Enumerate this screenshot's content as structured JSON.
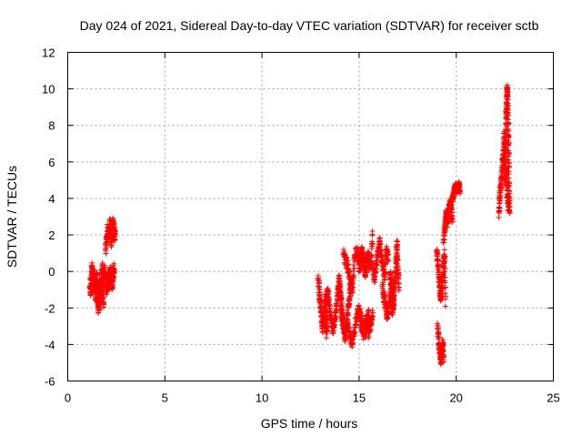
{
  "chart_data": {
    "type": "scatter",
    "title": "Day 024 of 2021, Sidereal Day-to-day VTEC variation (SDTVAR) for receiver sctb",
    "xlabel": "GPS time / hours",
    "ylabel": "SDTVAR / TECUs",
    "xlim": [
      0,
      25
    ],
    "ylim": [
      -6,
      12
    ],
    "xticks": [
      0,
      5,
      10,
      15,
      20,
      25
    ],
    "yticks": [
      -6,
      -4,
      -2,
      0,
      2,
      4,
      6,
      8,
      10,
      12
    ],
    "grid": true,
    "marker": "+",
    "color": "#ff0000",
    "series": [
      {
        "name": "sctb",
        "segments": [
          {
            "x0": 1.15,
            "x1": 1.5,
            "y": [
              -0.5,
              -1.2,
              -0.3,
              0.2,
              -1.0,
              -0.6,
              0.0,
              -1.4,
              -0.8,
              -0.2
            ],
            "noise": 0.35
          },
          {
            "x0": 1.5,
            "x1": 1.85,
            "y": [
              -0.8,
              -1.5,
              -2.0,
              -1.2,
              -0.4,
              -1.7,
              -0.9,
              0.3,
              -1.1,
              -1.8
            ],
            "noise": 0.4
          },
          {
            "x0": 1.85,
            "x1": 2.4,
            "y": [
              -0.3,
              0.2,
              -0.8,
              -1.2,
              0.0,
              -0.5,
              0.1,
              -1.0,
              -0.2,
              0.3
            ],
            "noise": 0.35
          },
          {
            "x0": 1.95,
            "x1": 2.45,
            "y": [
              1.2,
              1.8,
              2.3,
              2.0,
              2.6,
              1.5,
              2.4,
              2.8,
              2.1,
              1.9
            ],
            "noise": 0.3
          },
          {
            "x0": 12.9,
            "x1": 13.4,
            "y": [
              -0.5,
              -1.2,
              -1.8,
              -2.5,
              -3.0,
              -2.2,
              -1.6,
              -2.8,
              -3.4,
              -1.0
            ],
            "noise": 0.4
          },
          {
            "x0": 13.3,
            "x1": 14.3,
            "y": [
              -1.5,
              -1.2,
              -2.0,
              -2.8,
              -3.2,
              -2.5,
              -1.8,
              -1.0,
              -0.8,
              -2.2,
              -3.0,
              -3.5
            ],
            "noise": 0.35
          },
          {
            "x0": 13.9,
            "x1": 14.6,
            "y": [
              -1.0,
              -0.5,
              -1.5,
              -2.5,
              -3.0,
              -3.5,
              -2.8,
              -2.0,
              -1.2,
              -0.8
            ],
            "noise": 0.35
          },
          {
            "x0": 14.2,
            "x1": 15.2,
            "y": [
              1.0,
              0.6,
              0.2,
              -0.4,
              -1.0,
              0.5,
              1.2,
              0.8,
              0.3,
              0.9
            ],
            "noise": 0.35
          },
          {
            "x0": 14.4,
            "x1": 15.5,
            "y": [
              -2.8,
              -3.5,
              -4.0,
              -3.2,
              -2.5,
              -2.0,
              -2.8,
              -3.6,
              -3.0,
              -2.2
            ],
            "noise": 0.3
          },
          {
            "x0": 15.0,
            "x1": 15.7,
            "y": [
              0.2,
              0.8,
              1.2,
              0.5,
              -0.3,
              0.6,
              1.0,
              0.2,
              0.7,
              2.0
            ],
            "noise": 0.3
          },
          {
            "x0": 15.0,
            "x1": 15.7,
            "y": [
              -2.2,
              -2.8,
              -3.3,
              -3.0,
              -2.5,
              -3.4,
              -2.9,
              -2.4
            ],
            "noise": 0.3
          },
          {
            "x0": 15.7,
            "x1": 16.5,
            "y": [
              0.2,
              -0.5,
              0.4,
              1.0,
              1.6,
              0.8,
              0.2,
              -0.3,
              1.2,
              0.6
            ],
            "noise": 0.3
          },
          {
            "x0": 16.2,
            "x1": 16.8,
            "y": [
              -0.8,
              -1.5,
              -2.0,
              -2.4,
              -1.8,
              -1.2,
              -2.2,
              -1.6
            ],
            "noise": 0.3
          },
          {
            "x0": 16.6,
            "x1": 17.05,
            "y": [
              0.0,
              -0.5,
              -1.0,
              -1.6,
              -1.2,
              -0.6,
              0.5,
              1.5,
              0.2,
              -0.8
            ],
            "noise": 0.3
          },
          {
            "x0": 19.0,
            "x1": 19.45,
            "y": [
              1.2,
              0.6,
              -0.2,
              -0.8,
              -1.5,
              -1.0,
              -0.4,
              0.4,
              1.0,
              -1.8
            ],
            "noise": 0.3
          },
          {
            "x0": 19.05,
            "x1": 19.35,
            "y": [
              -3.0,
              -3.8,
              -4.2,
              -4.6,
              -5.0,
              -4.4,
              -3.9,
              -4.8
            ],
            "noise": 0.25
          },
          {
            "x0": 19.35,
            "x1": 19.8,
            "y": [
              1.5,
              2.2,
              2.8,
              3.2,
              2.6,
              3.0,
              3.6,
              3.9,
              3.3,
              2.9
            ],
            "noise": 0.25
          },
          {
            "x0": 19.8,
            "x1": 20.2,
            "y": [
              3.9,
              4.2,
              4.5,
              4.7,
              4.4,
              4.6,
              4.8,
              4.3
            ],
            "noise": 0.15
          },
          {
            "x0": 22.2,
            "x1": 22.7,
            "y": [
              3.2,
              4.0,
              4.6,
              5.2,
              5.8,
              6.5,
              7.5,
              6.2,
              5.5,
              4.8,
              4.0,
              3.4
            ],
            "noise": 0.3
          },
          {
            "x0": 22.5,
            "x1": 22.75,
            "y": [
              5.0,
              6.0,
              7.0,
              8.2,
              9.0,
              9.6,
              10.1,
              8.8,
              7.6,
              6.4,
              4.6,
              3.2
            ],
            "noise": 0.25
          }
        ]
      }
    ]
  }
}
